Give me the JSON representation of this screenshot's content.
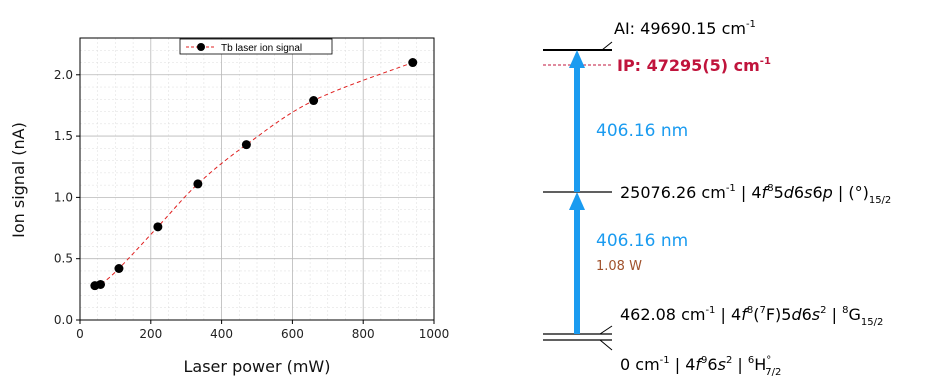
{
  "chart_data": [
    {
      "type": "scatter",
      "xlabel": "Laser power (mW)",
      "ylabel": "Ion signal (nA)",
      "xlim": [
        0,
        1000
      ],
      "ylim": [
        0,
        2.3
      ],
      "xticks": [
        "0",
        "200",
        "400",
        "600",
        "800",
        "1000"
      ],
      "yticks": [
        "0.0",
        "0.5",
        "1.0",
        "1.5",
        "2.0"
      ],
      "grid": true,
      "legend_position": "top-center",
      "series": [
        {
          "name": "Tb laser ion signal",
          "color": "#000000",
          "fit_color": "#e02020",
          "x": [
            42,
            58,
            110,
            220,
            333,
            470,
            660,
            940
          ],
          "y": [
            0.28,
            0.29,
            0.42,
            0.76,
            1.11,
            1.43,
            1.79,
            2.1
          ]
        }
      ]
    },
    {
      "type": "diagram",
      "levels": {
        "ai": "AI: 49690.15 cm",
        "ai_sup": "-1",
        "ip": "IP: 47295(5) cm",
        "ip_sup": "-1",
        "mid_energy": "25076.26 cm",
        "mid_sup": "-1",
        "mid_config_a": " | 4",
        "mid_f": "f",
        "mid_f_sup": "8",
        "mid_config_b": "5",
        "mid_d": "d",
        "mid_config_c": "6",
        "mid_s": "s",
        "mid_config_d": "6",
        "mid_p": "p",
        "mid_term": " | (°)",
        "mid_term_sub": "15/2",
        "low2_energy": "462.08 cm",
        "low2_sup": "-1",
        "low2_a": " | 4",
        "low2_f": "f",
        "low2_f_sup": "8",
        "low2_core": "(",
        "low2_core_sup": "7",
        "low2_core_b": "F)5",
        "low2_d": "d",
        "low2_c": "6",
        "low2_s": "s",
        "low2_s_sup": "2",
        "low2_term_a": " | ",
        "low2_term_sup": "8",
        "low2_term": "G",
        "low2_term_sub": "15/2",
        "ground_energy": "0 cm",
        "ground_sup": "-1",
        "ground_a": " | 4",
        "ground_f": "f",
        "ground_f_sup": "9",
        "ground_b": "6",
        "ground_s": "s",
        "ground_s_sup": "2",
        "ground_term_a": " | ",
        "ground_term_sup": "6",
        "ground_term": "H",
        "ground_term_deg": "°",
        "ground_term_sub": "7/2"
      },
      "transitions": {
        "upper_wavelength": "406.16 nm",
        "lower_wavelength": "406.16 nm",
        "lower_power": "1.08 W"
      },
      "colors": {
        "arrow": "#1a9bf0",
        "ip": "#c0143c",
        "power": "#a0522d"
      }
    }
  ]
}
